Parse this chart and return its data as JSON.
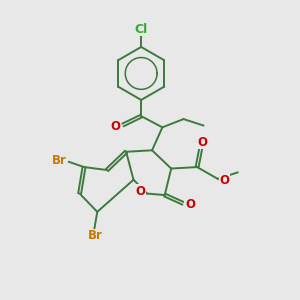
{
  "bg_color": "#e8e8e8",
  "bond_color": "#3d7a3d",
  "bond_width": 1.4,
  "atom_colors": {
    "O": "#cc0000",
    "Br": "#cc7700",
    "Cl": "#33aa33",
    "C": "#3d7a3d"
  },
  "font_size_atom": 8.5,
  "fig_size": [
    3.0,
    3.0
  ],
  "dpi": 100
}
